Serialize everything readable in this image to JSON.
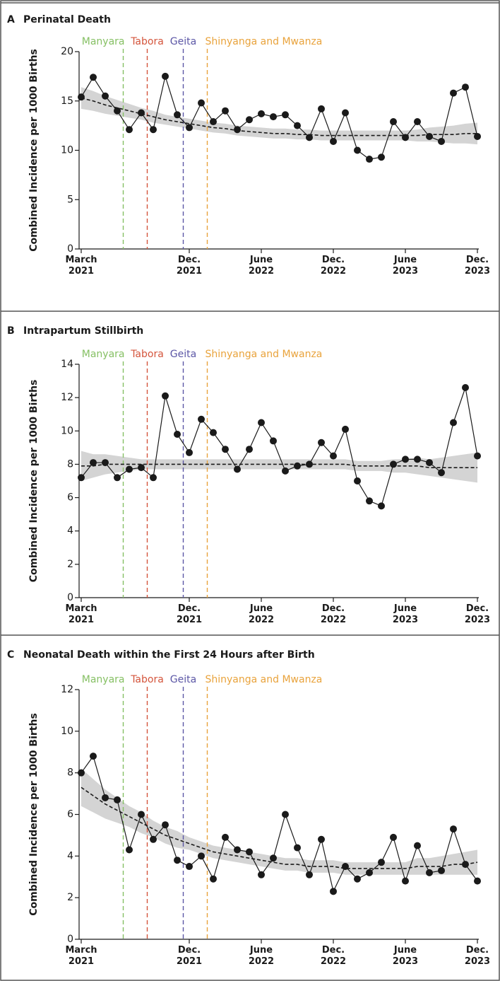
{
  "chart_data": [
    {
      "type": "line",
      "panel": "A",
      "title": "Perinatal Death",
      "y_label": "Combined Incidence per 1000 Births",
      "categories": [
        "March 2021",
        null,
        null,
        null,
        null,
        null,
        null,
        null,
        null,
        "Dec. 2021",
        null,
        null,
        null,
        null,
        null,
        "June 2022",
        null,
        null,
        null,
        null,
        null,
        "Dec. 2022",
        null,
        null,
        null,
        null,
        null,
        "June 2023",
        null,
        null,
        null,
        null,
        null,
        "Dec. 2023"
      ],
      "values": [
        15.4,
        17.4,
        15.5,
        14.0,
        12.1,
        13.8,
        12.1,
        17.5,
        13.6,
        12.3,
        14.8,
        12.9,
        14.0,
        12.1,
        13.1,
        13.7,
        13.4,
        13.6,
        12.5,
        11.3,
        14.2,
        10.9,
        13.8,
        10.0,
        9.1,
        9.3,
        12.9,
        11.3,
        12.9,
        11.4,
        10.9,
        15.8,
        16.4,
        11.4
      ],
      "trend": [
        15.3,
        15.0,
        14.6,
        14.3,
        14.0,
        13.7,
        13.4,
        13.1,
        12.9,
        12.7,
        12.5,
        12.3,
        12.2,
        12.0,
        11.9,
        11.8,
        11.7,
        11.7,
        11.6,
        11.6,
        11.5,
        11.5,
        11.5,
        11.5,
        11.5,
        11.5,
        11.5,
        11.5,
        11.5,
        11.6,
        11.6,
        11.6,
        11.7,
        11.7
      ],
      "band_lower": [
        14.2,
        14.0,
        13.7,
        13.5,
        13.3,
        13.1,
        12.8,
        12.6,
        12.4,
        12.2,
        12.0,
        11.8,
        11.7,
        11.5,
        11.4,
        11.3,
        11.2,
        11.2,
        11.1,
        11.1,
        11.0,
        11.0,
        11.0,
        11.0,
        11.0,
        11.0,
        11.0,
        11.0,
        10.9,
        10.9,
        10.8,
        10.7,
        10.7,
        10.6
      ],
      "band_upper": [
        16.4,
        16.0,
        15.5,
        15.1,
        14.7,
        14.3,
        14.0,
        13.6,
        13.4,
        13.2,
        13.0,
        12.8,
        12.7,
        12.5,
        12.4,
        12.3,
        12.2,
        12.2,
        12.1,
        12.1,
        12.0,
        12.0,
        12.0,
        12.0,
        12.0,
        12.0,
        12.0,
        12.0,
        12.1,
        12.3,
        12.4,
        12.5,
        12.7,
        12.8
      ],
      "color": "#1a1a1a",
      "trend_color": "#1a1a1a",
      "band_color": "#d4d4d4",
      "ylim": [
        0,
        20
      ],
      "yticks": [
        0,
        5,
        10,
        15,
        20
      ],
      "annotations": [
        {
          "label": "Manyara",
          "x": 3.5,
          "color": "#86c064"
        },
        {
          "label": "Tabora",
          "x": 5.5,
          "color": "#d4553c"
        },
        {
          "label": "Geita",
          "x": 8.5,
          "color": "#5c57a6"
        },
        {
          "label": "Shinyanga and Mwanza",
          "x": 10.5,
          "color": "#e9a33c"
        }
      ]
    },
    {
      "type": "line",
      "panel": "B",
      "title": "Intrapartum Stillbirth",
      "y_label": "Combined Incidence per 1000 Births",
      "categories": [
        "March 2021",
        null,
        null,
        null,
        null,
        null,
        null,
        null,
        null,
        "Dec. 2021",
        null,
        null,
        null,
        null,
        null,
        "June 2022",
        null,
        null,
        null,
        null,
        null,
        "Dec. 2022",
        null,
        null,
        null,
        null,
        null,
        "June 2023",
        null,
        null,
        null,
        null,
        null,
        "Dec. 2023"
      ],
      "values": [
        7.2,
        8.1,
        8.1,
        7.2,
        7.7,
        7.8,
        7.2,
        12.1,
        9.8,
        8.7,
        10.7,
        9.9,
        8.9,
        7.7,
        8.9,
        10.5,
        9.4,
        7.6,
        7.9,
        8.0,
        9.3,
        8.5,
        10.1,
        7.0,
        5.8,
        5.5,
        8.0,
        8.3,
        8.3,
        8.1,
        7.5,
        10.5,
        12.6,
        8.5
      ],
      "trend": [
        7.9,
        7.9,
        8.0,
        8.0,
        8.0,
        8.0,
        8.0,
        8.0,
        8.0,
        8.0,
        8.0,
        8.0,
        8.0,
        8.0,
        8.0,
        8.0,
        8.0,
        8.0,
        8.0,
        8.0,
        8.0,
        8.0,
        8.0,
        7.9,
        7.9,
        7.9,
        7.9,
        7.9,
        7.9,
        7.8,
        7.8,
        7.8,
        7.8,
        7.8
      ],
      "band_lower": [
        7.0,
        7.2,
        7.4,
        7.5,
        7.6,
        7.7,
        7.7,
        7.7,
        7.7,
        7.7,
        7.7,
        7.7,
        7.7,
        7.7,
        7.7,
        7.7,
        7.7,
        7.7,
        7.7,
        7.7,
        7.7,
        7.7,
        7.7,
        7.6,
        7.6,
        7.6,
        7.5,
        7.5,
        7.4,
        7.3,
        7.2,
        7.1,
        7.0,
        6.9
      ],
      "band_upper": [
        8.8,
        8.6,
        8.6,
        8.5,
        8.4,
        8.3,
        8.3,
        8.3,
        8.3,
        8.3,
        8.3,
        8.3,
        8.3,
        8.3,
        8.3,
        8.3,
        8.3,
        8.3,
        8.3,
        8.3,
        8.3,
        8.3,
        8.3,
        8.2,
        8.2,
        8.2,
        8.3,
        8.3,
        8.4,
        8.3,
        8.4,
        8.5,
        8.6,
        8.7
      ],
      "color": "#1a1a1a",
      "trend_color": "#1a1a1a",
      "band_color": "#d4d4d4",
      "ylim": [
        0,
        14
      ],
      "yticks": [
        0,
        2,
        4,
        6,
        8,
        10,
        12,
        14
      ],
      "annotations": [
        {
          "label": "Manyara",
          "x": 3.5,
          "color": "#86c064"
        },
        {
          "label": "Tabora",
          "x": 5.5,
          "color": "#d4553c"
        },
        {
          "label": "Geita",
          "x": 8.5,
          "color": "#5c57a6"
        },
        {
          "label": "Shinyanga and Mwanza",
          "x": 10.5,
          "color": "#e9a33c"
        }
      ]
    },
    {
      "type": "line",
      "panel": "C",
      "title": "Neonatal Death within the First 24 Hours after Birth",
      "y_label": "Combined Incidence per 1000 Births",
      "categories": [
        "March 2021",
        null,
        null,
        null,
        null,
        null,
        null,
        null,
        null,
        "Dec. 2021",
        null,
        null,
        null,
        null,
        null,
        "June 2022",
        null,
        null,
        null,
        null,
        null,
        "Dec. 2022",
        null,
        null,
        null,
        null,
        null,
        "June 2023",
        null,
        null,
        null,
        null,
        null,
        "Dec. 2023"
      ],
      "values": [
        8.0,
        8.8,
        6.8,
        6.7,
        4.3,
        6.0,
        4.8,
        5.5,
        3.8,
        3.5,
        4.0,
        2.9,
        4.9,
        4.3,
        4.2,
        3.1,
        3.9,
        6.0,
        4.4,
        3.1,
        4.8,
        2.3,
        3.5,
        2.9,
        3.2,
        3.7,
        4.9,
        2.8,
        4.5,
        3.2,
        3.3,
        5.3,
        3.6,
        2.8
      ],
      "trend": [
        7.3,
        6.9,
        6.5,
        6.2,
        5.9,
        5.6,
        5.3,
        5.0,
        4.8,
        4.6,
        4.4,
        4.2,
        4.1,
        4.0,
        3.9,
        3.8,
        3.7,
        3.6,
        3.6,
        3.5,
        3.5,
        3.5,
        3.4,
        3.4,
        3.4,
        3.4,
        3.4,
        3.4,
        3.5,
        3.5,
        3.5,
        3.6,
        3.6,
        3.7
      ],
      "band_lower": [
        6.4,
        6.1,
        5.8,
        5.6,
        5.4,
        5.1,
        4.9,
        4.6,
        4.4,
        4.3,
        4.1,
        3.9,
        3.8,
        3.7,
        3.6,
        3.5,
        3.4,
        3.3,
        3.3,
        3.2,
        3.2,
        3.2,
        3.1,
        3.1,
        3.1,
        3.1,
        3.1,
        3.1,
        3.1,
        3.1,
        3.1,
        3.1,
        3.1,
        3.1
      ],
      "band_upper": [
        8.2,
        7.7,
        7.2,
        6.8,
        6.4,
        6.1,
        5.7,
        5.4,
        5.2,
        4.9,
        4.7,
        4.5,
        4.4,
        4.3,
        4.2,
        4.1,
        4.0,
        3.9,
        3.9,
        3.8,
        3.8,
        3.8,
        3.7,
        3.7,
        3.7,
        3.7,
        3.7,
        3.7,
        3.9,
        3.9,
        4.0,
        4.1,
        4.2,
        4.3
      ],
      "color": "#1a1a1a",
      "trend_color": "#1a1a1a",
      "band_color": "#d4d4d4",
      "ylim": [
        0,
        12
      ],
      "yticks": [
        0,
        2,
        4,
        6,
        8,
        10,
        12
      ],
      "annotations": [
        {
          "label": "Manyara",
          "x": 3.5,
          "color": "#86c064"
        },
        {
          "label": "Tabora",
          "x": 5.5,
          "color": "#d4553c"
        },
        {
          "label": "Geita",
          "x": 8.5,
          "color": "#5c57a6"
        },
        {
          "label": "Shinyanga and Mwanza",
          "x": 10.5,
          "color": "#e9a33c"
        }
      ]
    }
  ]
}
